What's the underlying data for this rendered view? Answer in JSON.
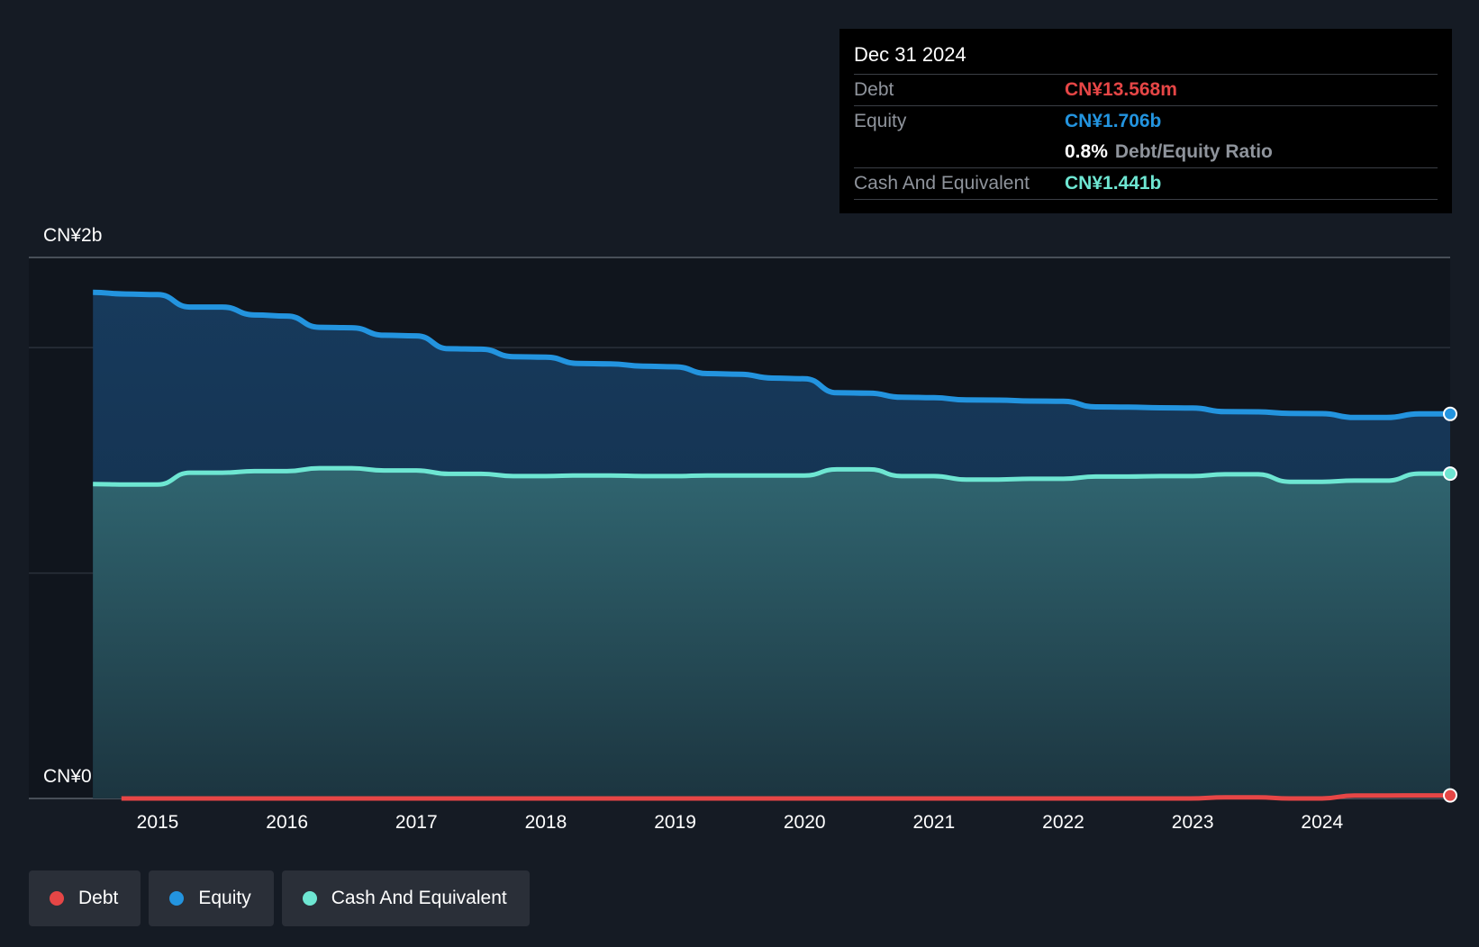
{
  "tooltip": {
    "date": "Dec 31 2024",
    "debt_label": "Debt",
    "debt_value": "CN¥13.568m",
    "equity_label": "Equity",
    "equity_value": "CN¥1.706b",
    "ratio_value": "0.8%",
    "ratio_label": "Debt/Equity Ratio",
    "cash_label": "Cash And Equivalent",
    "cash_value": "CN¥1.441b"
  },
  "legend": [
    {
      "label": "Debt",
      "color": "#e64646"
    },
    {
      "label": "Equity",
      "color": "#2394df"
    },
    {
      "label": "Cash And Equivalent",
      "color": "#6ee6d2"
    }
  ],
  "chart_data": {
    "type": "area",
    "title": "",
    "xlabel": "",
    "ylabel": "",
    "y_top_label": "CN¥2b",
    "y_bottom_label": "CN¥0",
    "ylim": [
      0,
      2.4
    ],
    "xlim": [
      2014.45,
      2024.99
    ],
    "x_ticks": [
      "2015",
      "2016",
      "2017",
      "2018",
      "2019",
      "2020",
      "2021",
      "2022",
      "2023",
      "2024"
    ],
    "unit": "CN¥ billions",
    "colors": {
      "debt": "#e64646",
      "equity": "#2394df",
      "cash": "#6ee6d2"
    },
    "series": [
      {
        "name": "Equity",
        "x": [
          2014.5,
          2014.75,
          2015.0,
          2015.25,
          2015.5,
          2015.75,
          2016.0,
          2016.25,
          2016.5,
          2016.75,
          2017.0,
          2017.25,
          2017.5,
          2017.75,
          2018.0,
          2018.25,
          2018.5,
          2018.75,
          2019.0,
          2019.25,
          2019.5,
          2019.75,
          2020.0,
          2020.25,
          2020.5,
          2020.75,
          2021.0,
          2021.25,
          2021.5,
          2021.75,
          2022.0,
          2022.25,
          2022.5,
          2022.75,
          2023.0,
          2023.25,
          2023.5,
          2023.75,
          2024.0,
          2024.25,
          2024.5,
          2024.75,
          2024.99
        ],
        "values": [
          2.245,
          2.238,
          2.235,
          2.18,
          2.18,
          2.145,
          2.14,
          2.09,
          2.088,
          2.055,
          2.052,
          1.995,
          1.993,
          1.96,
          1.958,
          1.93,
          1.928,
          1.918,
          1.915,
          1.885,
          1.882,
          1.865,
          1.862,
          1.8,
          1.798,
          1.78,
          1.778,
          1.768,
          1.767,
          1.763,
          1.762,
          1.737,
          1.736,
          1.733,
          1.732,
          1.716,
          1.715,
          1.708,
          1.707,
          1.69,
          1.69,
          1.706,
          1.706
        ]
      },
      {
        "name": "Cash And Equivalent",
        "x": [
          2014.5,
          2014.75,
          2015.0,
          2015.25,
          2015.5,
          2015.75,
          2016.0,
          2016.25,
          2016.5,
          2016.75,
          2017.0,
          2017.25,
          2017.5,
          2017.75,
          2018.0,
          2018.25,
          2018.5,
          2018.75,
          2019.0,
          2019.25,
          2019.5,
          2019.75,
          2020.0,
          2020.25,
          2020.5,
          2020.75,
          2021.0,
          2021.25,
          2021.5,
          2021.75,
          2022.0,
          2022.25,
          2022.5,
          2022.75,
          2023.0,
          2023.25,
          2023.5,
          2023.75,
          2024.0,
          2024.25,
          2024.5,
          2024.75,
          2024.99
        ],
        "values": [
          1.395,
          1.393,
          1.393,
          1.445,
          1.445,
          1.452,
          1.452,
          1.465,
          1.465,
          1.455,
          1.455,
          1.44,
          1.44,
          1.43,
          1.43,
          1.433,
          1.433,
          1.43,
          1.43,
          1.433,
          1.433,
          1.433,
          1.433,
          1.46,
          1.46,
          1.43,
          1.43,
          1.415,
          1.415,
          1.418,
          1.418,
          1.428,
          1.428,
          1.43,
          1.43,
          1.438,
          1.438,
          1.405,
          1.405,
          1.41,
          1.41,
          1.441,
          1.441
        ]
      },
      {
        "name": "Debt",
        "x": [
          2014.72,
          2015.0,
          2016.0,
          2017.0,
          2018.0,
          2019.0,
          2020.0,
          2021.0,
          2022.0,
          2022.98,
          2023.25,
          2023.5,
          2023.75,
          2024.0,
          2024.25,
          2024.5,
          2024.75,
          2024.99
        ],
        "values": [
          0.0,
          0.0,
          0.0,
          0.0,
          0.0,
          0.0,
          0.0,
          0.0,
          0.0,
          0.0,
          0.005,
          0.005,
          0.0,
          0.0,
          0.013,
          0.013,
          0.0136,
          0.0136
        ]
      }
    ]
  }
}
